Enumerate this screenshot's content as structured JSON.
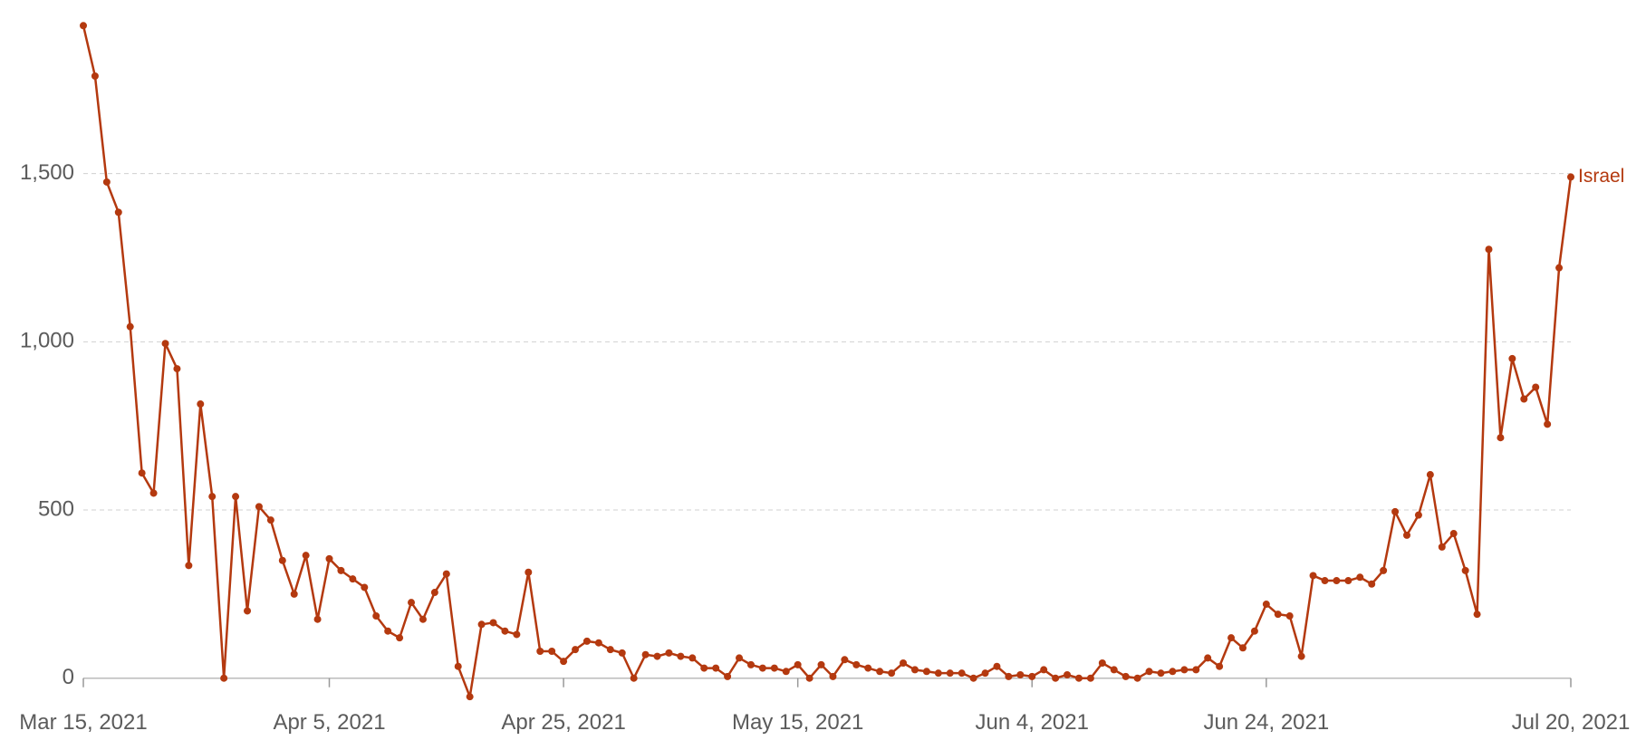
{
  "chart_data": {
    "type": "line",
    "x": [
      "2021-03-15",
      "2021-03-16",
      "2021-03-17",
      "2021-03-18",
      "2021-03-19",
      "2021-03-20",
      "2021-03-21",
      "2021-03-22",
      "2021-03-23",
      "2021-03-24",
      "2021-03-25",
      "2021-03-26",
      "2021-03-27",
      "2021-03-28",
      "2021-03-29",
      "2021-03-30",
      "2021-03-31",
      "2021-04-01",
      "2021-04-02",
      "2021-04-03",
      "2021-04-04",
      "2021-04-05",
      "2021-04-06",
      "2021-04-07",
      "2021-04-08",
      "2021-04-09",
      "2021-04-10",
      "2021-04-11",
      "2021-04-12",
      "2021-04-13",
      "2021-04-14",
      "2021-04-15",
      "2021-04-16",
      "2021-04-17",
      "2021-04-18",
      "2021-04-19",
      "2021-04-20",
      "2021-04-21",
      "2021-04-22",
      "2021-04-23",
      "2021-04-24",
      "2021-04-25",
      "2021-04-26",
      "2021-04-27",
      "2021-04-28",
      "2021-04-29",
      "2021-04-30",
      "2021-05-01",
      "2021-05-02",
      "2021-05-03",
      "2021-05-04",
      "2021-05-05",
      "2021-05-06",
      "2021-05-07",
      "2021-05-08",
      "2021-05-09",
      "2021-05-10",
      "2021-05-11",
      "2021-05-12",
      "2021-05-13",
      "2021-05-14",
      "2021-05-15",
      "2021-05-16",
      "2021-05-17",
      "2021-05-18",
      "2021-05-19",
      "2021-05-20",
      "2021-05-21",
      "2021-05-22",
      "2021-05-23",
      "2021-05-24",
      "2021-05-25",
      "2021-05-26",
      "2021-05-27",
      "2021-05-28",
      "2021-05-29",
      "2021-05-30",
      "2021-05-31",
      "2021-06-01",
      "2021-06-02",
      "2021-06-03",
      "2021-06-04",
      "2021-06-05",
      "2021-06-06",
      "2021-06-07",
      "2021-06-08",
      "2021-06-09",
      "2021-06-10",
      "2021-06-11",
      "2021-06-12",
      "2021-06-13",
      "2021-06-14",
      "2021-06-15",
      "2021-06-16",
      "2021-06-17",
      "2021-06-18",
      "2021-06-19",
      "2021-06-20",
      "2021-06-21",
      "2021-06-22",
      "2021-06-23",
      "2021-06-24",
      "2021-06-25",
      "2021-06-26",
      "2021-06-27",
      "2021-06-28",
      "2021-06-29",
      "2021-06-30",
      "2021-07-01",
      "2021-07-02",
      "2021-07-03",
      "2021-07-04",
      "2021-07-05",
      "2021-07-06",
      "2021-07-07",
      "2021-07-08",
      "2021-07-09",
      "2021-07-10",
      "2021-07-11",
      "2021-07-12",
      "2021-07-13",
      "2021-07-14",
      "2021-07-15",
      "2021-07-16",
      "2021-07-17",
      "2021-07-18",
      "2021-07-19",
      "2021-07-20"
    ],
    "series": [
      {
        "name": "Israel",
        "color": "#b4390f",
        "values": [
          1940,
          1790,
          1475,
          1385,
          1045,
          610,
          550,
          995,
          920,
          335,
          815,
          540,
          0,
          540,
          200,
          510,
          470,
          350,
          250,
          365,
          175,
          355,
          320,
          295,
          270,
          185,
          140,
          120,
          225,
          175,
          255,
          310,
          35,
          -55,
          160,
          165,
          140,
          130,
          315,
          80,
          80,
          50,
          85,
          110,
          105,
          85,
          75,
          0,
          70,
          65,
          75,
          65,
          60,
          30,
          30,
          5,
          60,
          40,
          30,
          30,
          20,
          40,
          0,
          40,
          5,
          55,
          40,
          30,
          20,
          15,
          45,
          25,
          20,
          15,
          15,
          15,
          0,
          15,
          35,
          5,
          10,
          5,
          25,
          0,
          10,
          0,
          0,
          45,
          25,
          5,
          0,
          20,
          15,
          20,
          25,
          25,
          60,
          35,
          120,
          90,
          140,
          220,
          190,
          185,
          65,
          305,
          290,
          290,
          290,
          300,
          280,
          320,
          495,
          425,
          485,
          605,
          390,
          430,
          320,
          190,
          1275,
          715,
          950,
          830,
          865,
          755,
          1220,
          1490
        ]
      }
    ],
    "xlim": [
      "2021-03-15",
      "2021-07-20"
    ],
    "xticks": [
      {
        "value": "2021-03-15",
        "label": "Mar 15, 2021"
      },
      {
        "value": "2021-04-05",
        "label": "Apr 5, 2021"
      },
      {
        "value": "2021-04-25",
        "label": "Apr 25, 2021"
      },
      {
        "value": "2021-05-15",
        "label": "May 15, 2021"
      },
      {
        "value": "2021-06-04",
        "label": "Jun 4, 2021"
      },
      {
        "value": "2021-06-24",
        "label": "Jun 24, 2021"
      },
      {
        "value": "2021-07-20",
        "label": "Jul 20, 2021"
      }
    ],
    "ylim": [
      -60,
      2000
    ],
    "yticks": [
      0,
      500,
      {
        "value": 1000,
        "label": "1,000"
      },
      {
        "value": 1500,
        "label": "1,500"
      }
    ],
    "grid": true
  }
}
